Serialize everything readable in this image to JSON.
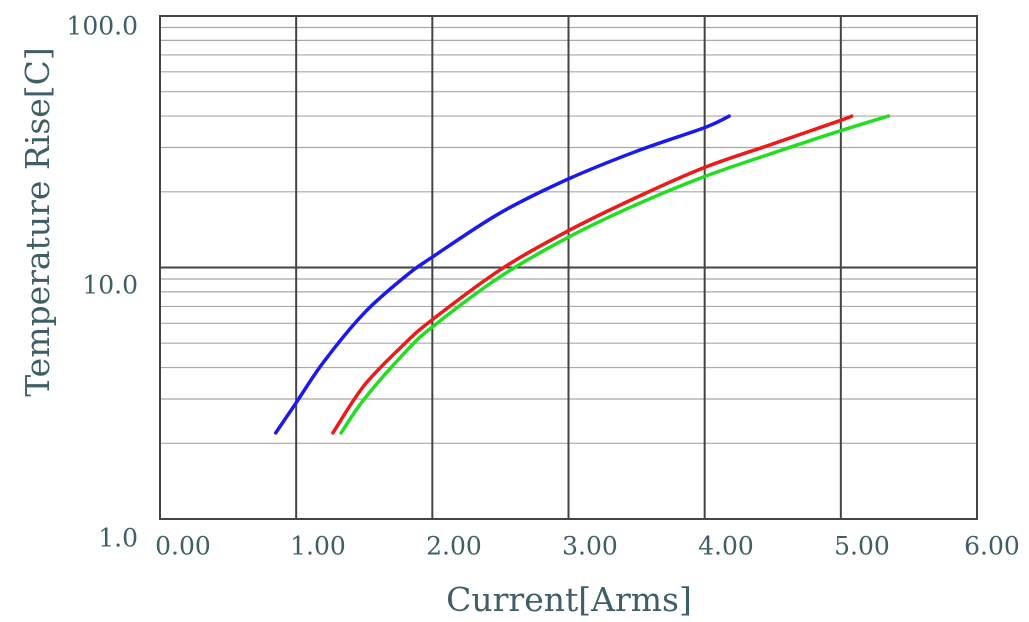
{
  "chart_data": {
    "type": "line",
    "title": "",
    "xlabel": "Current[Arms]",
    "ylabel": "Temperature Rise[C]",
    "xlim": [
      0,
      6
    ],
    "ylim": [
      1,
      100
    ],
    "yscale": "log",
    "grid": true,
    "x_tick_labels": [
      "0.00",
      "1.00",
      "2.00",
      "3.00",
      "4.00",
      "5.00",
      "6.00"
    ],
    "y_tick_labels": [
      "1.0",
      "10.0",
      "100.0"
    ],
    "series": [
      {
        "color": "#1a1aee",
        "x": [
          0.85,
          1.0,
          1.2,
          1.5,
          1.8,
          2.0,
          2.5,
          3.0,
          3.5,
          4.0,
          4.18
        ],
        "y": [
          2.2,
          2.9,
          4.2,
          6.6,
          9.2,
          11.0,
          16.5,
          22.5,
          29.0,
          36.0,
          40.0
        ]
      },
      {
        "color": "#ee1a1a",
        "x": [
          1.27,
          1.5,
          1.8,
          2.0,
          2.5,
          3.0,
          3.5,
          4.0,
          4.5,
          5.0,
          5.08
        ],
        "y": [
          2.2,
          3.4,
          5.0,
          6.2,
          9.8,
          14.0,
          19.0,
          25.0,
          31.0,
          38.5,
          40.0
        ]
      },
      {
        "color": "#22dd22",
        "x": [
          1.33,
          1.5,
          1.8,
          2.0,
          2.5,
          3.0,
          3.5,
          4.0,
          4.5,
          5.0,
          5.35
        ],
        "y": [
          2.2,
          3.0,
          4.6,
          5.8,
          9.2,
          13.2,
          17.8,
          23.0,
          28.5,
          35.0,
          40.0
        ]
      }
    ]
  }
}
